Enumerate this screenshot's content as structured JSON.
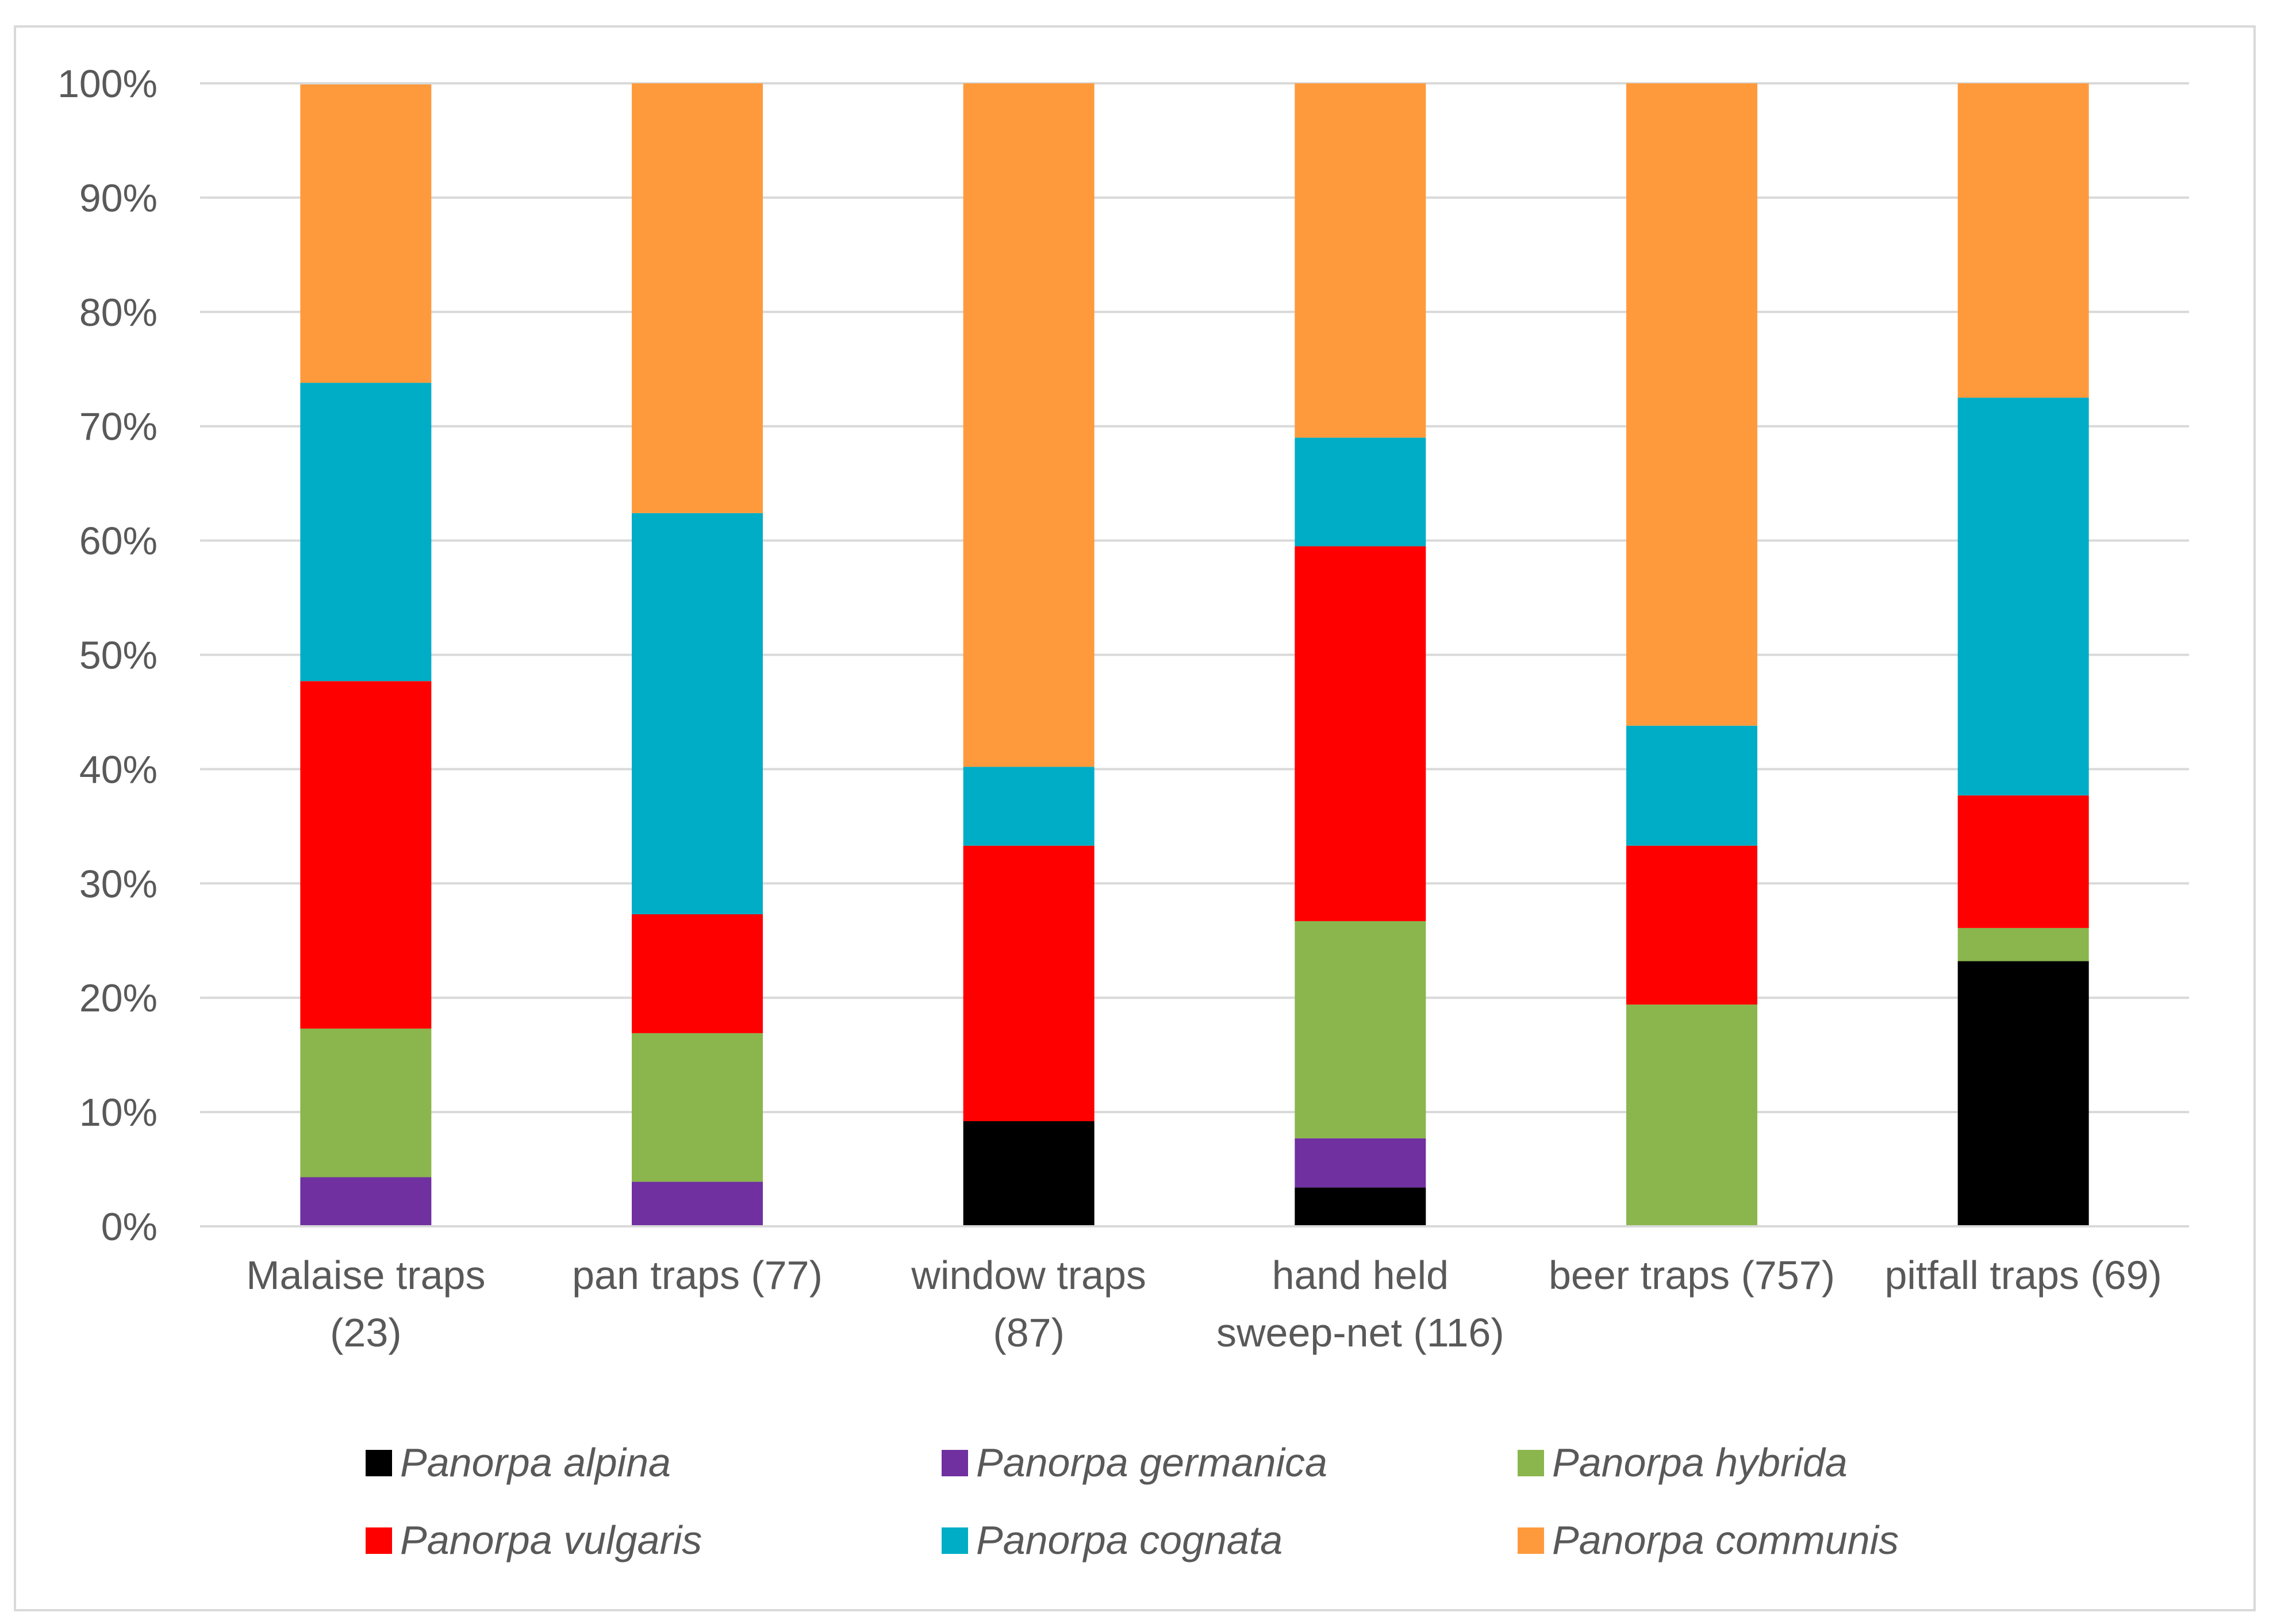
{
  "chart_data": {
    "type": "bar",
    "stacked": true,
    "percent": true,
    "title": "",
    "xlabel": "",
    "ylabel": "",
    "ylim": [
      0,
      100
    ],
    "y_ticks": [
      "0%",
      "10%",
      "20%",
      "30%",
      "40%",
      "50%",
      "60%",
      "70%",
      "80%",
      "90%",
      "100%"
    ],
    "grid": true,
    "legend_position": "bottom",
    "categories": [
      [
        "Malaise traps",
        "(23)"
      ],
      [
        "pan traps (77)"
      ],
      [
        "window traps",
        "(87)"
      ],
      [
        "hand held",
        "sweep-net (116)"
      ],
      [
        "beer traps (757)"
      ],
      [
        "pitfall traps (69)"
      ]
    ],
    "series": [
      {
        "name": "Panorpa alpina",
        "color": "#000000",
        "values": [
          0,
          0,
          9.2,
          3.4,
          0,
          23.2
        ]
      },
      {
        "name": "Panorpa germanica",
        "color": "#7030a0",
        "values": [
          4.3,
          3.9,
          0,
          4.3,
          0,
          0
        ]
      },
      {
        "name": "Panorpa hybrida",
        "color": "#8ab64d",
        "values": [
          13.0,
          13.0,
          0,
          19.0,
          19.4,
          2.9
        ]
      },
      {
        "name": "Panorpa vulgaris",
        "color": "#ff0000",
        "values": [
          30.4,
          10.4,
          24.1,
          32.8,
          13.9,
          11.6
        ]
      },
      {
        "name": "Panorpa cognata",
        "color": "#00adc6",
        "values": [
          26.1,
          35.1,
          6.9,
          9.5,
          10.5,
          34.8
        ]
      },
      {
        "name": "Panorpa communis",
        "color": "#ff9a3c",
        "values": [
          26.1,
          37.6,
          59.8,
          31.0,
          56.2,
          27.5
        ]
      }
    ]
  }
}
